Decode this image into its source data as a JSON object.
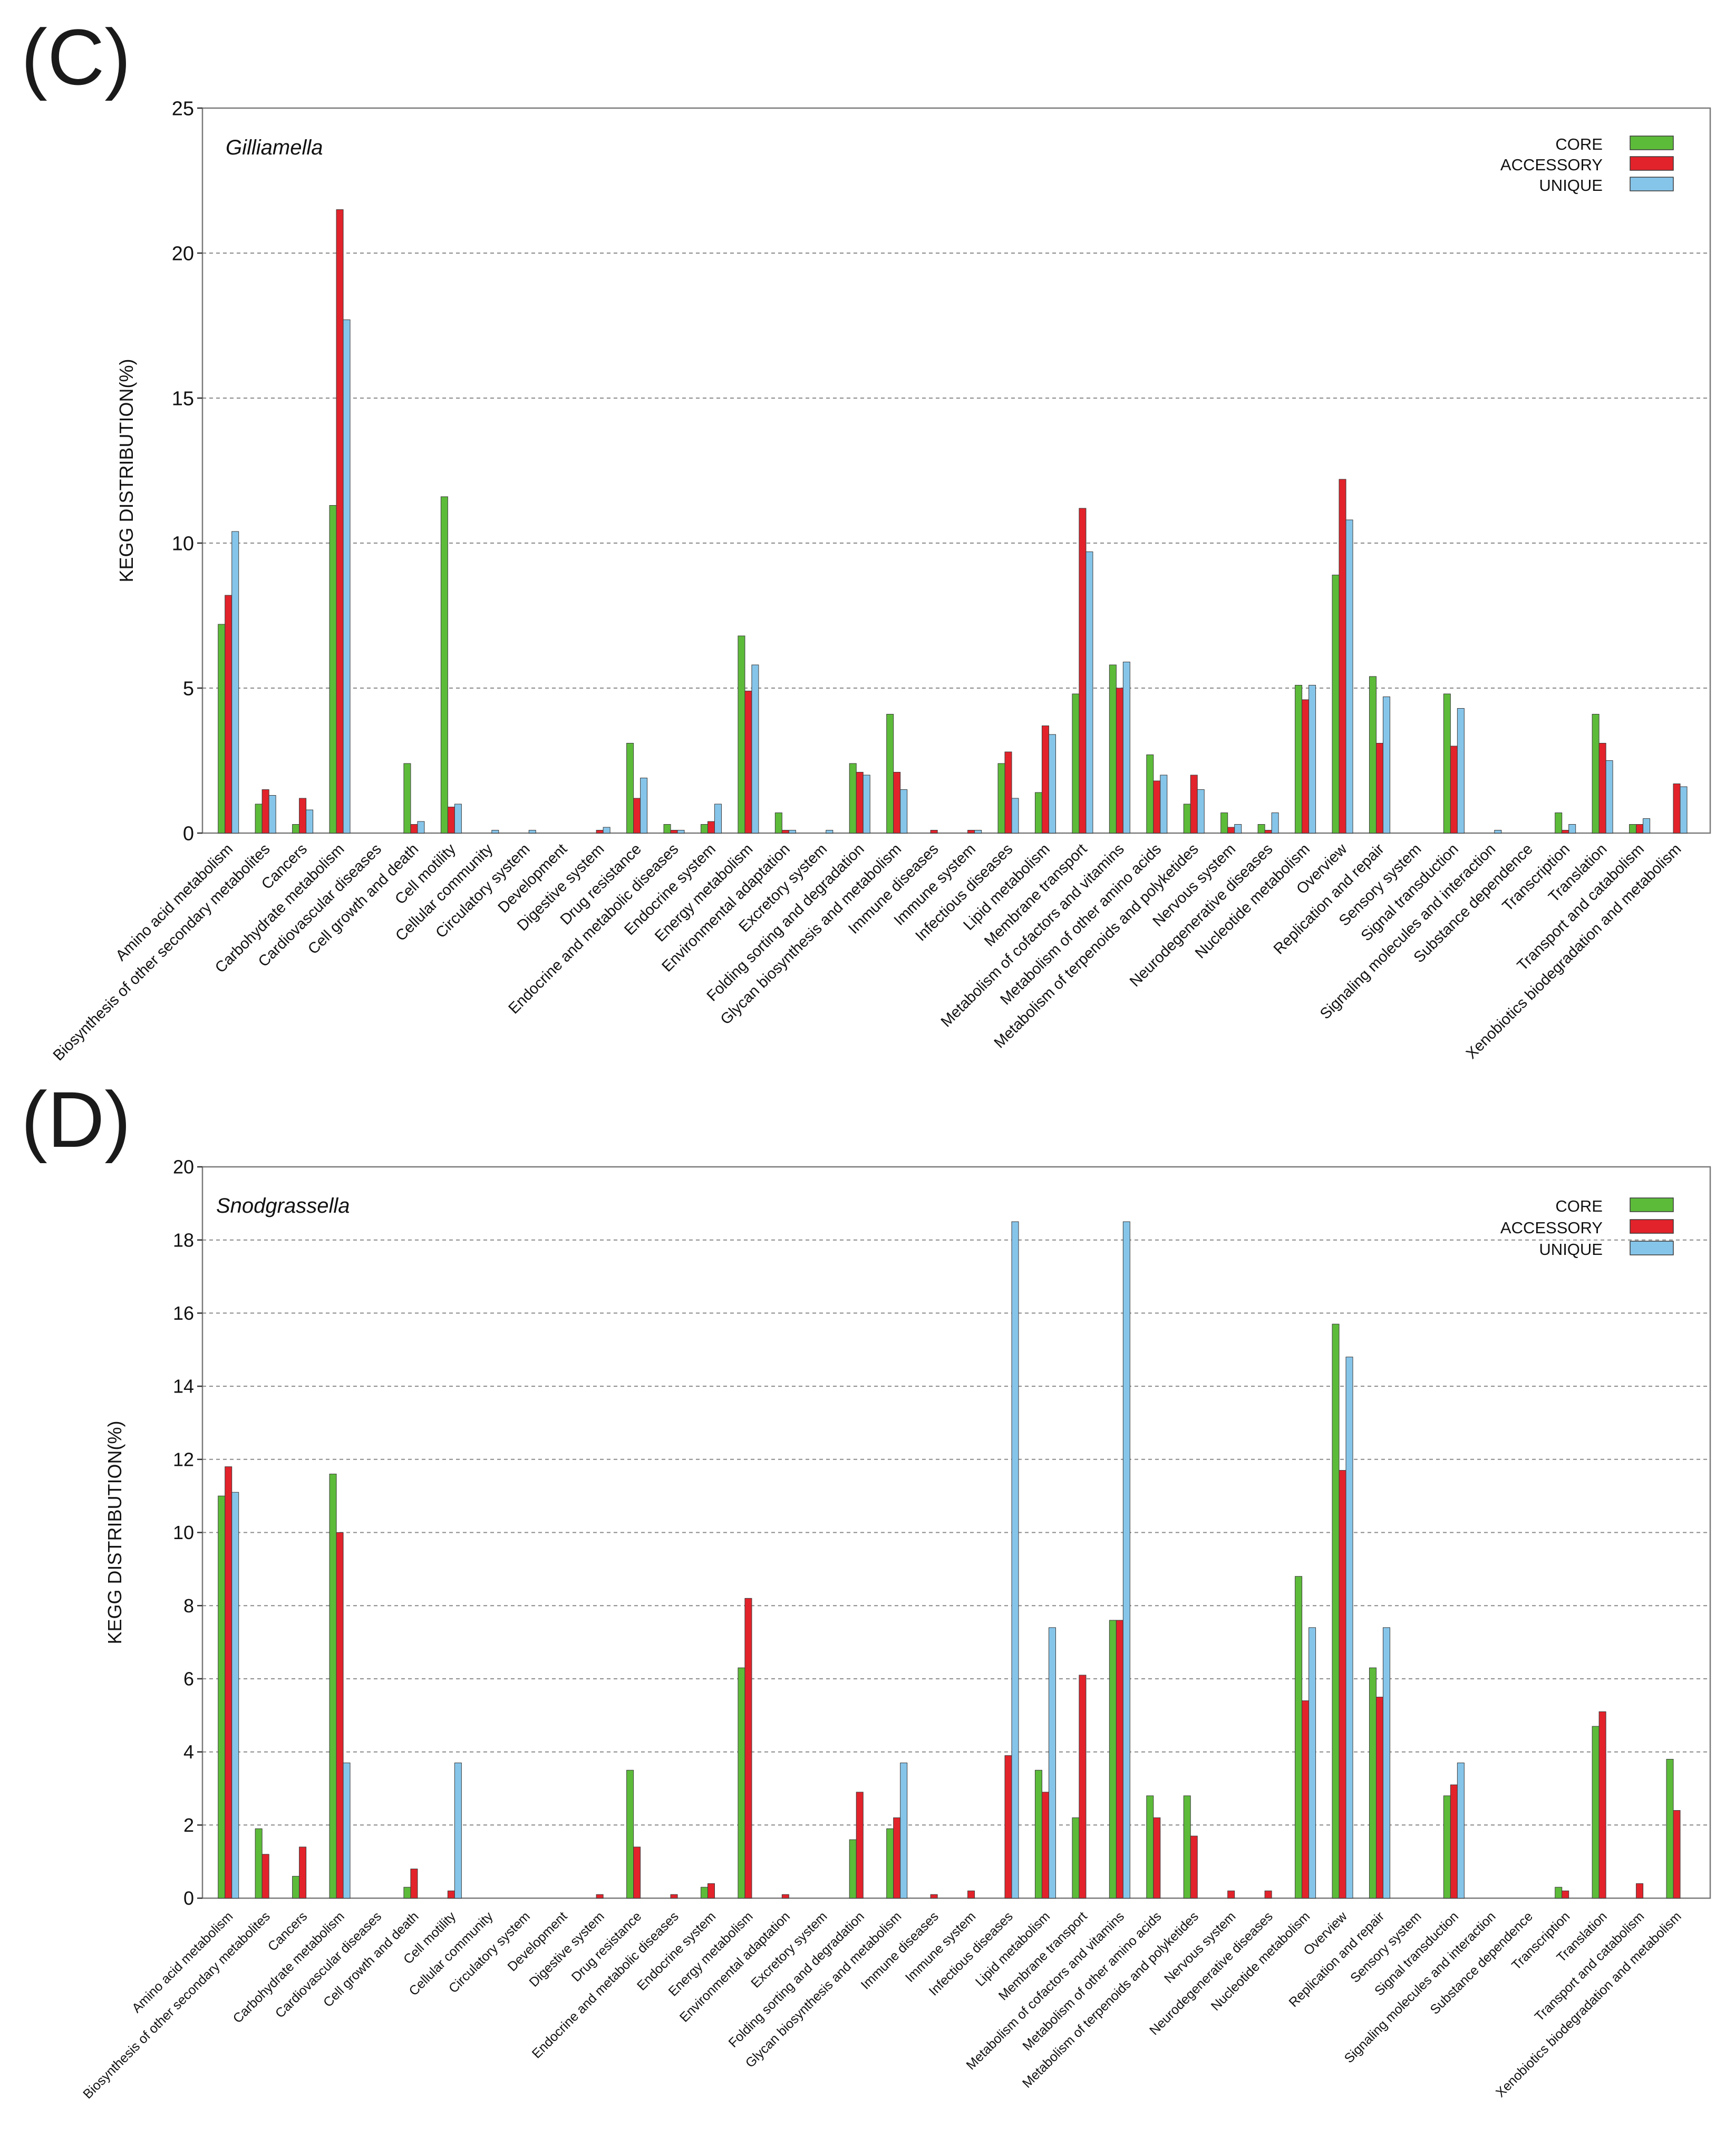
{
  "chart_data": [
    {
      "type": "bar",
      "panel": "(C)",
      "organism": "Gilliamella",
      "title": "",
      "ylabel": "KEGG    DISTRIBUTION(%)",
      "ylim": [
        0,
        25
      ],
      "yticks": [
        0,
        5,
        10,
        15,
        20,
        25
      ],
      "grid": "horizontal dashed",
      "legend_position": "top-right",
      "categories": [
        "Amino acid metabolism",
        "Biosynthesis of other secondary metabolites",
        "Cancers",
        "Carbohydrate metabolism",
        "Cardiovascular diseases",
        "Cell growth and death",
        "Cell motility",
        "Cellular community",
        "Circulatory system",
        "Development",
        "Digestive system",
        "Drug resistance",
        "Endocrine and metabolic diseases",
        "Endocrine system",
        "Energy metabolism",
        "Environmental adaptation",
        "Excretory system",
        "Folding sorting and degradation",
        "Glycan biosynthesis and metabolism",
        "Immune diseases",
        "Immune system",
        "Infectious diseases",
        "Lipid metabolism",
        "Membrane transport",
        "Metabolism of cofactors and vitamins",
        "Metabolism of other amino acids",
        "Metabolism of terpenoids and polyketides",
        "Nervous system",
        "Neurodegenerative diseases",
        "Nucleotide metabolism",
        "Overview",
        "Replication and repair",
        "Sensory system",
        "Signal transduction",
        "Signaling molecules and interaction",
        "Substance dependence",
        "Transcription",
        "Translation",
        "Transport and catabolism",
        "Xenobiotics biodegradation and metabolism"
      ],
      "series": [
        {
          "name": "CORE",
          "color": "#5dbb3a",
          "values": [
            7.2,
            1.0,
            0.3,
            11.3,
            0,
            2.4,
            11.6,
            0,
            0,
            0,
            0,
            3.1,
            0.3,
            0.3,
            6.8,
            0.7,
            0,
            2.4,
            4.1,
            0,
            0,
            2.4,
            1.4,
            4.8,
            5.8,
            2.7,
            1.0,
            0.7,
            0.3,
            5.1,
            8.9,
            5.4,
            0,
            4.8,
            0,
            0,
            0.7,
            4.1,
            0.3,
            0
          ]
        },
        {
          "name": "ACCESSORY",
          "color": "#e2232b",
          "values": [
            8.2,
            1.5,
            1.2,
            21.5,
            0,
            0.3,
            0.9,
            0,
            0,
            0,
            0.1,
            1.2,
            0.1,
            0.4,
            4.9,
            0.1,
            0,
            2.1,
            2.1,
            0.1,
            0.1,
            2.8,
            3.7,
            11.2,
            5.0,
            1.8,
            2.0,
            0.2,
            0.1,
            4.6,
            12.2,
            3.1,
            0,
            3.0,
            0,
            0,
            0.1,
            3.1,
            0.3,
            1.7
          ]
        },
        {
          "name": "UNIQUE",
          "color": "#86c5ea",
          "values": [
            10.4,
            1.3,
            0.8,
            17.7,
            0,
            0.4,
            1.0,
            0.1,
            0.1,
            0,
            0.2,
            1.9,
            0.1,
            1.0,
            5.8,
            0.1,
            0.1,
            2.0,
            1.5,
            0,
            0.1,
            1.2,
            3.4,
            9.7,
            5.9,
            2.0,
            1.5,
            0.3,
            0.7,
            5.1,
            10.8,
            4.7,
            0,
            4.3,
            0.1,
            0,
            0.3,
            2.5,
            0.5,
            1.6
          ]
        }
      ]
    },
    {
      "type": "bar",
      "panel": "(D)",
      "organism": "Snodgrassella",
      "title": "",
      "ylabel": "KEGG    DISTRIBUTION(%)",
      "ylim": [
        0,
        20
      ],
      "yticks": [
        0,
        2,
        4,
        6,
        8,
        10,
        12,
        14,
        16,
        18,
        20
      ],
      "grid": "horizontal dashed",
      "legend_position": "top-right",
      "categories": [
        "Amino acid metabolism",
        "Biosynthesis of other secondary metabolites",
        "Cancers",
        "Carbohydrate metabolism",
        "Cardiovascular diseases",
        "Cell growth and death",
        "Cell motility",
        "Cellular community",
        "Circulatory system",
        "Development",
        "Digestive system",
        "Drug resistance",
        "Endocrine and metabolic diseases",
        "Endocrine system",
        "Energy metabolism",
        "Environmental adaptation",
        "Excretory system",
        "Folding sorting and degradation",
        "Glycan biosynthesis and metabolism",
        "Immune diseases",
        "Immune system",
        "Infectious diseases",
        "Lipid metabolism",
        "Membrane transport",
        "Metabolism of cofactors and vitamins",
        "Metabolism of other amino acids",
        "Metabolism of terpenoids and polyketides",
        "Nervous system",
        "Neurodegenerative diseases",
        "Nucleotide metabolism",
        "Overview",
        "Replication and repair",
        "Sensory system",
        "Signal transduction",
        "Signaling molecules and interaction",
        "Substance dependence",
        "Transcription",
        "Translation",
        "Transport and catabolism",
        "Xenobiotics biodegradation and metabolism"
      ],
      "series": [
        {
          "name": "CORE",
          "color": "#5dbb3a",
          "values": [
            11.0,
            1.9,
            0.6,
            11.6,
            0,
            0.3,
            0,
            0,
            0,
            0,
            0,
            3.5,
            0,
            0.3,
            6.3,
            0,
            0,
            1.6,
            1.9,
            0,
            0,
            0,
            3.5,
            2.2,
            7.6,
            2.8,
            2.8,
            0,
            0,
            8.8,
            15.7,
            6.3,
            0,
            2.8,
            0,
            0,
            0.3,
            4.7,
            0,
            3.8
          ]
        },
        {
          "name": "ACCESSORY",
          "color": "#e2232b",
          "values": [
            11.8,
            1.2,
            1.4,
            10.0,
            0,
            0.8,
            0.2,
            0,
            0,
            0,
            0.1,
            1.4,
            0.1,
            0.4,
            8.2,
            0.1,
            0,
            2.9,
            2.2,
            0.1,
            0.2,
            3.9,
            2.9,
            6.1,
            7.6,
            2.2,
            1.7,
            0.2,
            0.2,
            5.4,
            11.7,
            5.5,
            0,
            3.1,
            0,
            0,
            0.2,
            5.1,
            0.4,
            2.4
          ]
        },
        {
          "name": "UNIQUE",
          "color": "#86c5ea",
          "values": [
            11.1,
            0,
            0,
            3.7,
            0,
            0,
            3.7,
            0,
            0,
            0,
            0,
            0,
            0,
            0,
            0,
            0,
            0,
            0,
            3.7,
            0,
            0,
            18.5,
            7.4,
            0,
            18.5,
            0,
            0,
            0,
            0,
            7.4,
            14.8,
            7.4,
            0,
            3.7,
            0,
            0,
            0,
            0,
            0,
            0
          ]
        }
      ]
    }
  ]
}
